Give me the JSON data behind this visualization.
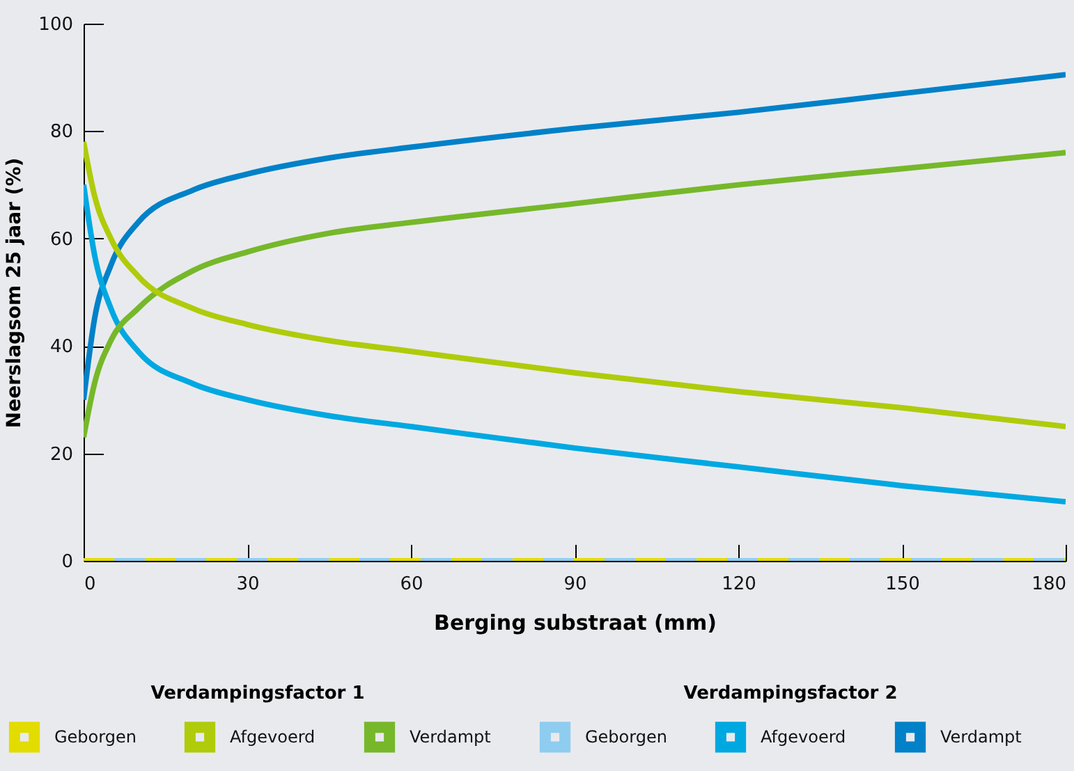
{
  "chart_data": {
    "type": "line",
    "xlabel": "Berging substraat (mm)",
    "ylabel": "Neerslagsom 25 jaar (%)",
    "x": [
      0,
      2,
      5,
      10,
      20,
      30,
      45,
      60,
      90,
      120,
      150,
      180
    ],
    "xlim": [
      0,
      180
    ],
    "xticks": [
      0,
      30,
      60,
      90,
      120,
      150,
      180
    ],
    "ylim": [
      0,
      100
    ],
    "yticks": [
      0,
      20,
      40,
      60,
      80,
      100
    ],
    "grid": false,
    "legend": "bottom",
    "marker": "none",
    "annotations": [
      "Verdampingsfactor 1",
      "Verdampingsfactor 2"
    ],
    "series": [
      {
        "name": "Geborgen",
        "color": "#e2dc00",
        "line_style": "dashed",
        "values": [
          0,
          0,
          0,
          0,
          0,
          0,
          0,
          0,
          0,
          0,
          0,
          0
        ]
      },
      {
        "name": "Afgevoerd",
        "color": "#b0cb0a",
        "values": [
          78,
          68,
          60,
          53,
          47,
          44,
          41,
          39,
          35,
          31.5,
          28.5,
          25
        ]
      },
      {
        "name": "Verdampt",
        "color": "#76b82a",
        "values": [
          23,
          33,
          41,
          47,
          54,
          57.5,
          61,
          63,
          66.5,
          70,
          73,
          76
        ]
      },
      {
        "name": "Geborgen",
        "color": "#8ecdf0",
        "values": [
          0,
          0,
          0,
          0,
          0,
          0,
          0,
          0,
          0,
          0,
          0,
          0
        ]
      },
      {
        "name": "Afgevoerd",
        "color": "#00a8e1",
        "values": [
          70,
          57,
          47,
          39,
          33,
          30,
          27,
          25,
          21,
          17.5,
          14,
          11
        ]
      },
      {
        "name": "Verdampt",
        "color": "#0081c8",
        "values": [
          30,
          45,
          55,
          63,
          69,
          72,
          75,
          77,
          80.5,
          83.5,
          87,
          90.5
        ]
      }
    ]
  }
}
